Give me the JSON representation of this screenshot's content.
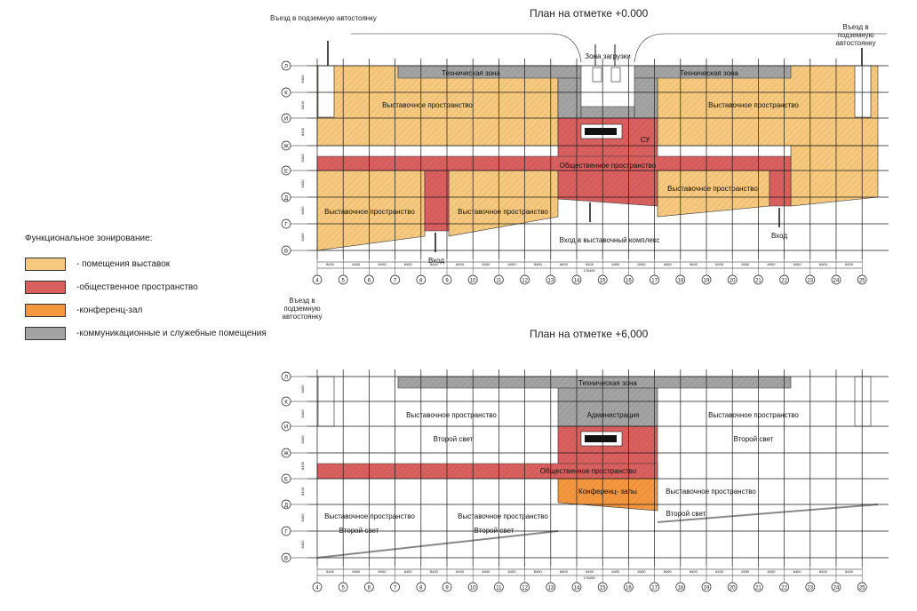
{
  "colors": {
    "exhibition": "#f7c97e",
    "public": "#d9605f",
    "conference": "#f5973f",
    "service": "#a3a3a3",
    "line": "#1a1a1a"
  },
  "legend": {
    "title": "Функциональное зонирование:",
    "items": [
      {
        "key": "exhibition",
        "label": "- помещения выставок"
      },
      {
        "key": "public",
        "label": "-общественное пространство"
      },
      {
        "key": "conference",
        "label": "-конференц-зал"
      },
      {
        "key": "service",
        "label": "-коммуникационные и служебные помещения"
      }
    ]
  },
  "plan1": {
    "title": "План на отметке  +0.000",
    "notes": {
      "entrance_left": "Въезд в подземную автостоянку",
      "entrance_right": "Въезд в подземную автостоянку",
      "entrance_bottom": "Въезд в подземную автостоянку",
      "loading": "Зона загрузки",
      "tech_left": "Техническая зона",
      "tech_right": "Техническая зона",
      "expo_upper_left": "Выставочное пространство",
      "expo_upper_right": "Выставочное пространство",
      "su": "СУ",
      "public": "Общественное пространство",
      "expo_low_a": "Выставочное пространство",
      "expo_low_b": "Выставочное пространство",
      "expo_low_c": "Выставочное пространство",
      "entry_main": "Вход в выставочный комплекс",
      "entry_left": "Вход",
      "entry_right": "Вход"
    }
  },
  "plan2": {
    "title": "План на отметке  +6,000",
    "notes": {
      "tech": "Техническая зона",
      "admin": "Администрация",
      "expo_left": "Выставочное пространство",
      "expo_right": "Выставочное пространство",
      "second_light_left": "Второй свет",
      "second_light_right": "Второй свет",
      "public": "Общественное пространство",
      "conference": "Конференц- залы",
      "expo_mid": "Выставочное пространство",
      "second_light_mid": "Второй свет",
      "expo_low_a": "Выставочное пространство",
      "second_light_a": "Второй свет",
      "expo_low_b": "Выставочное пространство",
      "second_light_b": "Второй свет"
    }
  },
  "grid": {
    "columns": [
      "4",
      "5",
      "6",
      "7",
      "8",
      "9",
      "10",
      "11",
      "12",
      "13",
      "14",
      "15",
      "16",
      "17",
      "18",
      "19",
      "20",
      "21",
      "22",
      "23",
      "24",
      "25"
    ],
    "rows": [
      "Л",
      "К",
      "И",
      "Ж",
      "Е",
      "Д",
      "Г",
      "В"
    ],
    "span_label": "8400",
    "total_label": "176400",
    "row_span_label": "8400"
  }
}
